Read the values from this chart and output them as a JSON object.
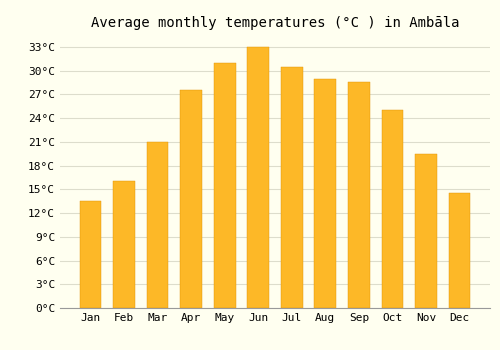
{
  "title": "Average monthly temperatures (°C ) in Ambāla",
  "months": [
    "Jan",
    "Feb",
    "Mar",
    "Apr",
    "May",
    "Jun",
    "Jul",
    "Aug",
    "Sep",
    "Oct",
    "Nov",
    "Dec"
  ],
  "values": [
    13.5,
    16.0,
    21.0,
    27.5,
    31.0,
    33.0,
    30.5,
    29.0,
    28.5,
    25.0,
    19.5,
    14.5
  ],
  "bar_color_main": "#FDB827",
  "bar_color_gradient_bottom": "#F5A000",
  "bar_color_edge": "#E09000",
  "background_color": "#FFFFF0",
  "grid_color": "#DDDDCC",
  "yticks": [
    0,
    3,
    6,
    9,
    12,
    15,
    18,
    21,
    24,
    27,
    30,
    33
  ],
  "ylim": [
    0,
    34.5
  ],
  "title_fontsize": 10,
  "tick_fontsize": 8,
  "font_family": "monospace"
}
